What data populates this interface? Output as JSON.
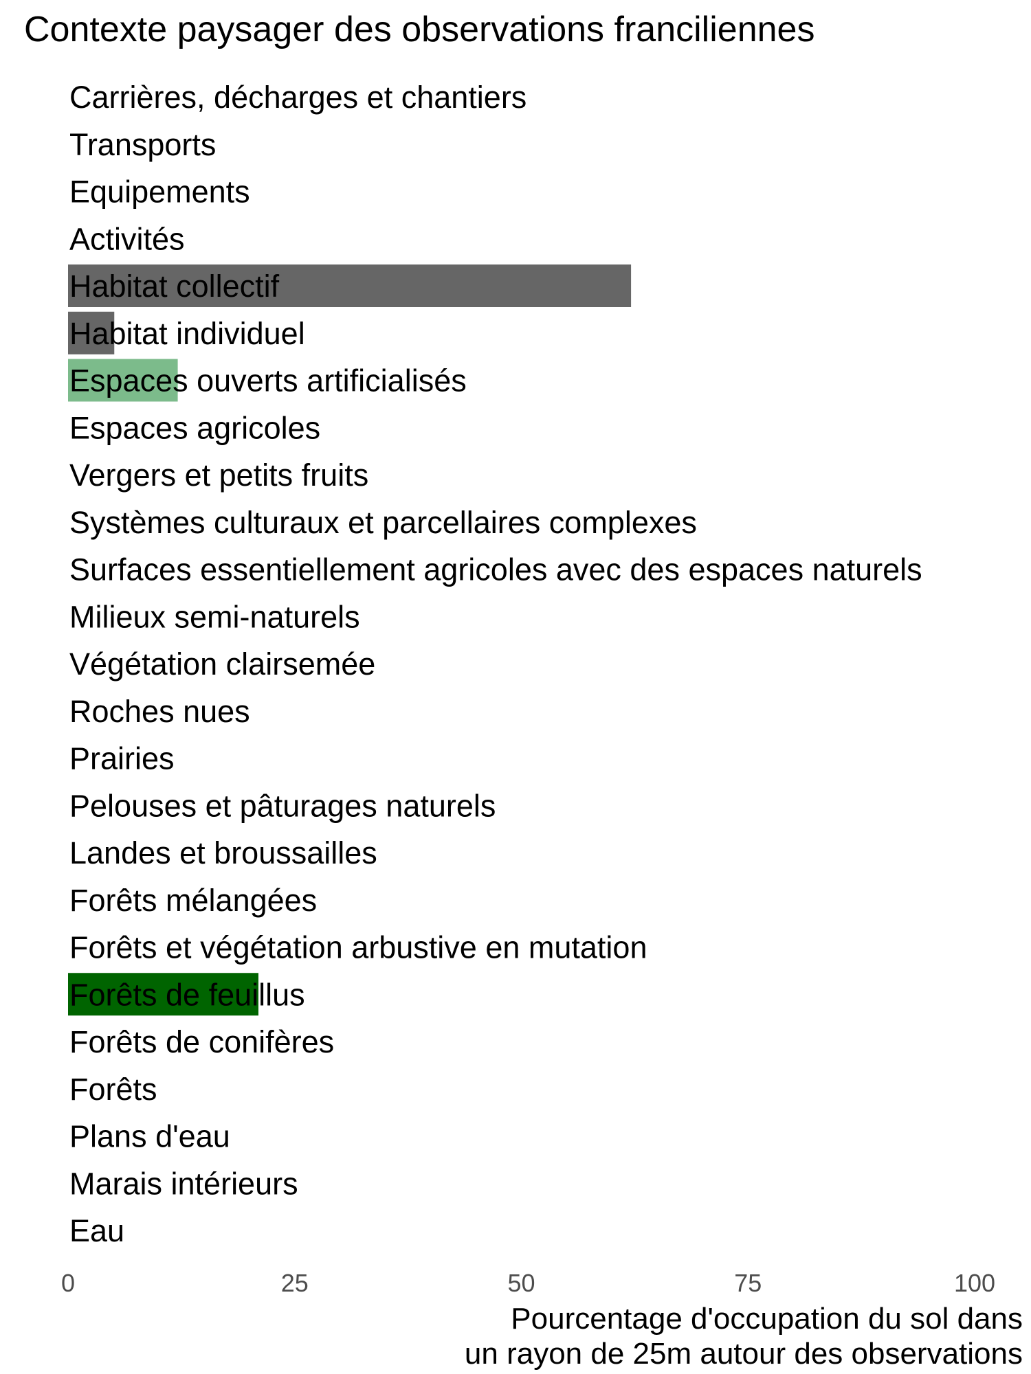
{
  "chart_data": {
    "type": "bar",
    "orientation": "horizontal",
    "title": "Contexte paysager des observations franciliennes",
    "xlabel": "Pourcentage d'occupation du sol dans\nun rayon de 25m autour des observations",
    "xlabel_lines": [
      "Pourcentage d'occupation du sol dans",
      "un rayon de 25m autour des observations"
    ],
    "ylabel": "",
    "xlim": [
      0,
      100
    ],
    "xticks": [
      "0",
      "25",
      "50",
      "75",
      "100"
    ],
    "grid": false,
    "categories": [
      "Carrières, décharges et chantiers",
      "Transports",
      "Equipements",
      "Activités",
      "Habitat collectif",
      "Habitat individuel",
      "Espaces ouverts artificialisés",
      "Espaces agricoles",
      "Vergers et petits fruits",
      "Systèmes culturaux et parcellaires complexes",
      "Surfaces essentiellement agricoles avec des espaces naturels",
      "Milieux semi-naturels",
      "Végétation clairsemée",
      "Roches nues",
      "Prairies",
      "Pelouses et pâturages naturels",
      "Landes et broussailles",
      "Forêts mélangées",
      "Forêts et végétation arbustive en mutation",
      "Forêts de feuillus",
      "Forêts de conifères",
      "Forêts",
      "Plans d'eau",
      "Marais intérieurs",
      "Eau"
    ],
    "values": [
      0,
      0,
      0,
      0,
      62.1,
      5.1,
      12.1,
      0,
      0,
      0,
      0,
      0,
      0,
      0,
      0,
      0,
      0,
      0,
      0,
      21,
      0,
      0,
      0,
      0,
      0
    ],
    "colors": [
      "#666666",
      "#666666",
      "#666666",
      "#666666",
      "#666666",
      "#666666",
      "#7cbb8b",
      "#7cbb8b",
      "#7cbb8b",
      "#7cbb8b",
      "#7cbb8b",
      "#7cbb8b",
      "#7cbb8b",
      "#7cbb8b",
      "#7cbb8b",
      "#7cbb8b",
      "#7cbb8b",
      "#006400",
      "#006400",
      "#006400",
      "#006400",
      "#006400",
      "#1f78b4",
      "#1f78b4",
      "#1f78b4"
    ],
    "tick_color": "#4d4d4d"
  }
}
